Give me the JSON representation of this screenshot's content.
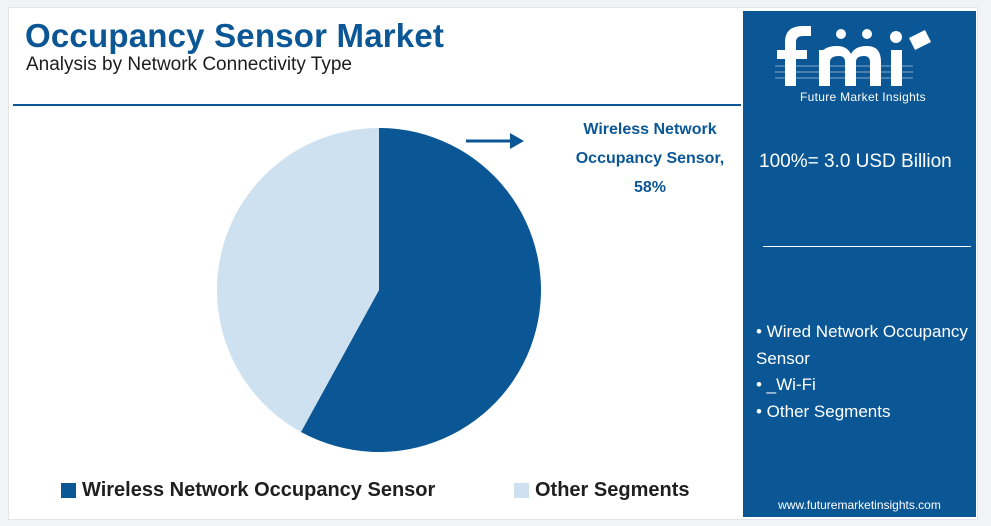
{
  "header": {
    "title": "Occupancy Sensor Market",
    "subtitle": "Analysis by Network Connectivity Type"
  },
  "chart_data": {
    "type": "pie",
    "slices": [
      {
        "name": "Wireless Network Occupancy Sensor",
        "value": 58,
        "color": "#0b5795"
      },
      {
        "name": "Other Segments",
        "value": 42,
        "color": "#cde1f0"
      }
    ],
    "callout": "Wireless Network Occupancy Sensor, 58%",
    "legend_position": "bottom",
    "legend": [
      "Wireless Network Occupancy Sensor",
      "Other Segments"
    ]
  },
  "sidebar": {
    "logo": "fmi",
    "logo_caption": "Future Market Insights",
    "total": "100%= 3.0 USD Billion",
    "segments": [
      "• Wired Network Occupancy Sensor",
      "• _Wi-Fi",
      "• Other Segments"
    ],
    "url": "www.futuremarketinsights.com"
  },
  "colors": {
    "brand_blue": "#0b5795",
    "light_blue": "#cde1f0",
    "footer_green": "#6cb33f",
    "footer_orange": "#e07b39",
    "footer_purple": "#7b3f8f"
  }
}
